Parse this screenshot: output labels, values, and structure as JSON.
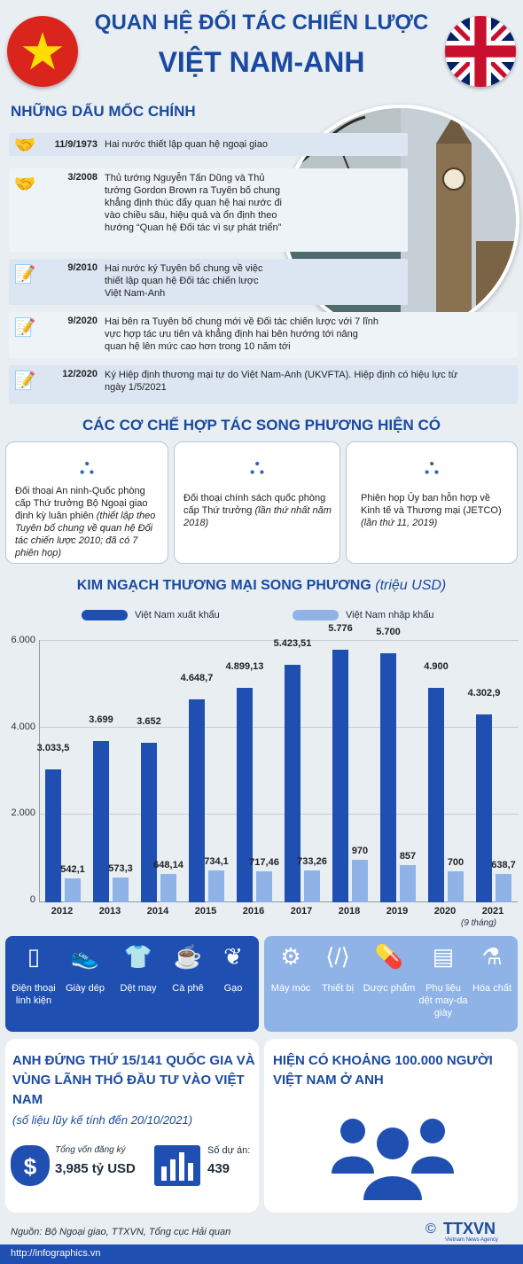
{
  "title": {
    "line1": "QUAN HỆ ĐỐI TÁC CHIẾN LƯỢC",
    "line2": "VIỆT NAM-ANH"
  },
  "milestones_heading": "NHỮNG DẤU MỐC CHÍNH",
  "milestones": [
    {
      "date": "11/9/1973",
      "text": "Hai nước thiết lập quan hệ ngoại giao"
    },
    {
      "date": "3/2008",
      "text": "Thủ tướng Nguyễn Tấn Dũng và Thủ tướng Gordon Brown ra Tuyên bố chung khẳng định thúc đẩy quan hệ hai nước đi vào chiều sâu, hiệu quả và ổn định theo hướng “Quan hệ Đối tác vì sự phát triển”"
    },
    {
      "date": "9/2010",
      "text": "Hai nước ký Tuyên bố chung về việc thiết lập quan hệ Đối tác chiến lược Việt Nam-Anh"
    },
    {
      "date": "9/2020",
      "text": "Hai bên ra Tuyên bố chung mới về Đối tác chiến lược với 7 lĩnh vực hợp tác ưu tiên và khẳng định hai bên hướng tới nâng quan hệ lên mức cao hơn trong 10 năm tới"
    },
    {
      "date": "12/2020",
      "text": "Ký Hiệp định thương mại tự do Việt Nam-Anh (UKVFTA). Hiệp định có hiệu lực từ ngày 1/5/2021"
    }
  ],
  "mechanisms_heading": "CÁC CƠ CHẾ HỢP TÁC SONG PHƯƠNG HIỆN CÓ",
  "mechanisms": [
    {
      "text": "Đối thoại An ninh-Quốc phòng cấp Thứ trưởng Bộ Ngoại giao định kỳ luân phiên",
      "note": "(thiết lập theo Tuyên bố chung về quan hệ Đối tác chiến lược 2010; đã có 7 phiên họp)"
    },
    {
      "text": "Đối thoại chính sách quốc phòng cấp Thứ trưởng",
      "note": "(lần thứ nhất năm 2018)"
    },
    {
      "text": "Phiên họp Ủy ban hỗn hợp về Kinh tế và Thương mại (JETCO)",
      "note": "(lần thứ 11, 2019)"
    }
  ],
  "chart_heading": "KIM NGẠCH THƯƠNG MẠI SONG PHƯƠNG",
  "chart_unit": "(triệu USD)",
  "chart_data": {
    "type": "bar",
    "categories": [
      "2012",
      "2013",
      "2014",
      "2015",
      "2016",
      "2017",
      "2018",
      "2019",
      "2020",
      "2021"
    ],
    "category_note": "(9 tháng)",
    "series": [
      {
        "name": "Việt Nam xuất khẩu",
        "color": "#1f4fb0",
        "values": [
          3033.5,
          3699,
          3652,
          4648.7,
          4899.13,
          5423.51,
          5776,
          5700,
          4900,
          4302.9
        ],
        "labels": [
          "3.033,5",
          "3.699",
          "3.652",
          "4.648,7",
          "4.899,13",
          "5.423,51",
          "5.776",
          "5.700",
          "4.900",
          "4.302,9"
        ]
      },
      {
        "name": "Việt Nam nhập khẩu",
        "color": "#8fb3e6",
        "values": [
          542.1,
          573.3,
          648.14,
          734.1,
          717.46,
          733.26,
          970,
          857,
          700,
          638.7
        ],
        "labels": [
          "542,1",
          "573,3",
          "648,14",
          "734,1",
          "717,46",
          "733,26",
          "970",
          "857",
          "700",
          "638,7"
        ]
      }
    ],
    "yticks": [
      "6.000",
      "4.000",
      "2.000",
      "0"
    ],
    "ylim": [
      0,
      6000
    ],
    "grid": true,
    "legend": "top"
  },
  "exports": [
    {
      "icon": "phone-icon",
      "label": "Điện thoại linh kiện"
    },
    {
      "icon": "shoe-icon",
      "label": "Giày dép"
    },
    {
      "icon": "shirt-icon",
      "label": "Dệt may"
    },
    {
      "icon": "coffee-icon",
      "label": "Cà phê"
    },
    {
      "icon": "rice-icon",
      "label": "Gạo"
    }
  ],
  "imports": [
    {
      "icon": "gears-icon",
      "label": "Máy móc"
    },
    {
      "icon": "device-icon",
      "label": "Thiết bị"
    },
    {
      "icon": "pill-icon",
      "label": "Dược phẩm"
    },
    {
      "icon": "fabric-icon",
      "label": "Phụ liệu dệt may-da giày"
    },
    {
      "icon": "flask-icon",
      "label": "Hóa chất"
    }
  ],
  "investment": {
    "headline": "ANH ĐỨNG THỨ 15/141 QUỐC GIA VÀ VÙNG LÃNH THỔ ĐẦU TƯ VÀO VIỆT NAM",
    "note": "(số liệu lũy kế tính đến 20/10/2021)",
    "capital_label": "Tổng vốn đăng ký",
    "capital_value": "3,985 tỷ USD",
    "projects_label": "Số dự án:",
    "projects_value": "439"
  },
  "people": {
    "headline": "HIỆN CÓ KHOẢNG 100.000 NGƯỜI VIỆT NAM Ở ANH"
  },
  "source": "Nguồn: Bộ Ngoại giao, TTXVN, Tổng cục Hải quan",
  "url": "http://infographics.vn",
  "logo": "TTXVN",
  "logo_sub": "Vietnam News Agency"
}
